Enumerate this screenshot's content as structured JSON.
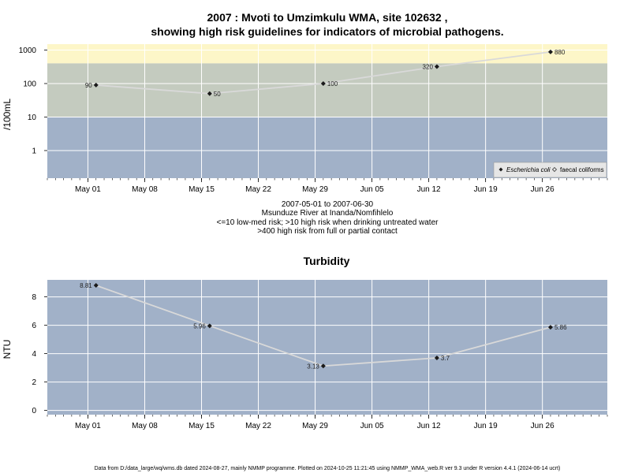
{
  "colors": {
    "high_risk": "#fdf6c8",
    "med_risk": "#c4cbbf",
    "low_risk": "#a1b1c8",
    "panel": "#a1b1c8",
    "grid": "#ffffff",
    "line": "#d9d9d9",
    "point": "#1a1a1a"
  },
  "chart_data": [
    {
      "type": "line",
      "title_line1": "2007 : Mvoti to Umzimkulu WMA, site 102632 ,",
      "title_line2": "showing high risk guidelines for indicators of microbial pathogens.",
      "ylabel": "/100mL",
      "yscale": "log",
      "ylim": [
        0.15,
        1500
      ],
      "yticks": [
        "1",
        "10",
        "100",
        "1000"
      ],
      "ytick_values": [
        1,
        10,
        100,
        1000
      ],
      "xlim": [
        "2007-04-26",
        "2007-07-04"
      ],
      "xticks": [
        "May 01",
        "May 08",
        "May 15",
        "May 22",
        "May 29",
        "Jun 05",
        "Jun 12",
        "Jun 19",
        "Jun 26"
      ],
      "xtick_dates": [
        "2007-05-01",
        "2007-05-08",
        "2007-05-15",
        "2007-05-22",
        "2007-05-29",
        "2007-06-05",
        "2007-06-12",
        "2007-06-19",
        "2007-06-26"
      ],
      "bands": [
        {
          "from": 400,
          "to": 1500,
          "level": "high"
        },
        {
          "from": 10,
          "to": 400,
          "level": "med"
        },
        {
          "from": 0.15,
          "to": 10,
          "level": "low"
        }
      ],
      "series": [
        {
          "name": "Escherichia coli",
          "x": [
            "2007-05-02",
            "2007-05-16",
            "2007-05-30",
            "2007-06-13",
            "2007-06-27"
          ],
          "values": [
            90,
            50,
            100,
            320,
            880
          ],
          "labels": [
            "90",
            "50",
            "100",
            "320",
            "880"
          ],
          "label_side": [
            "left",
            "right",
            "right",
            "left",
            "right"
          ]
        }
      ],
      "legend": {
        "position": "bottom-right",
        "items": [
          "Escherichia coli",
          "faecal coliforms"
        ]
      },
      "caption": [
        "2007-05-01 to 2007-06-30",
        "Msunduze River at Inanda/Nomfihlelo",
        "<=10 low-med risk; >10 high risk when drinking untreated water",
        ">400 high risk from full or partial contact"
      ],
      "grid": true
    },
    {
      "type": "line",
      "title": "Turbidity",
      "ylabel": "NTU",
      "ylim": [
        -0.3,
        9.2
      ],
      "yticks": [
        "0",
        "2",
        "4",
        "6",
        "8"
      ],
      "ytick_values": [
        0,
        2,
        4,
        6,
        8
      ],
      "xlim": [
        "2007-04-26",
        "2007-07-04"
      ],
      "xticks": [
        "May 01",
        "May 08",
        "May 15",
        "May 22",
        "May 29",
        "Jun 05",
        "Jun 12",
        "Jun 19",
        "Jun 26"
      ],
      "xtick_dates": [
        "2007-05-01",
        "2007-05-08",
        "2007-05-15",
        "2007-05-22",
        "2007-05-29",
        "2007-06-05",
        "2007-06-12",
        "2007-06-19",
        "2007-06-26"
      ],
      "series": [
        {
          "name": "Turbidity",
          "x": [
            "2007-05-02",
            "2007-05-16",
            "2007-05-30",
            "2007-06-13",
            "2007-06-27"
          ],
          "values": [
            8.81,
            5.96,
            3.13,
            3.7,
            5.86
          ],
          "labels": [
            "8.81",
            "5.96",
            "3.13",
            "3.7",
            "5.86"
          ],
          "label_side": [
            "left",
            "left",
            "left",
            "right",
            "right"
          ]
        }
      ],
      "grid": true
    }
  ],
  "footer": "Data from D:/data_large/wq/wms.db dated 2024-08-27, mainly NMMP programme. Plotted on 2024-10-25 11:21:45 using NMMP_WMA_web.R ver 9.3 under R version 4.4.1 (2024-06-14 ucrt)"
}
